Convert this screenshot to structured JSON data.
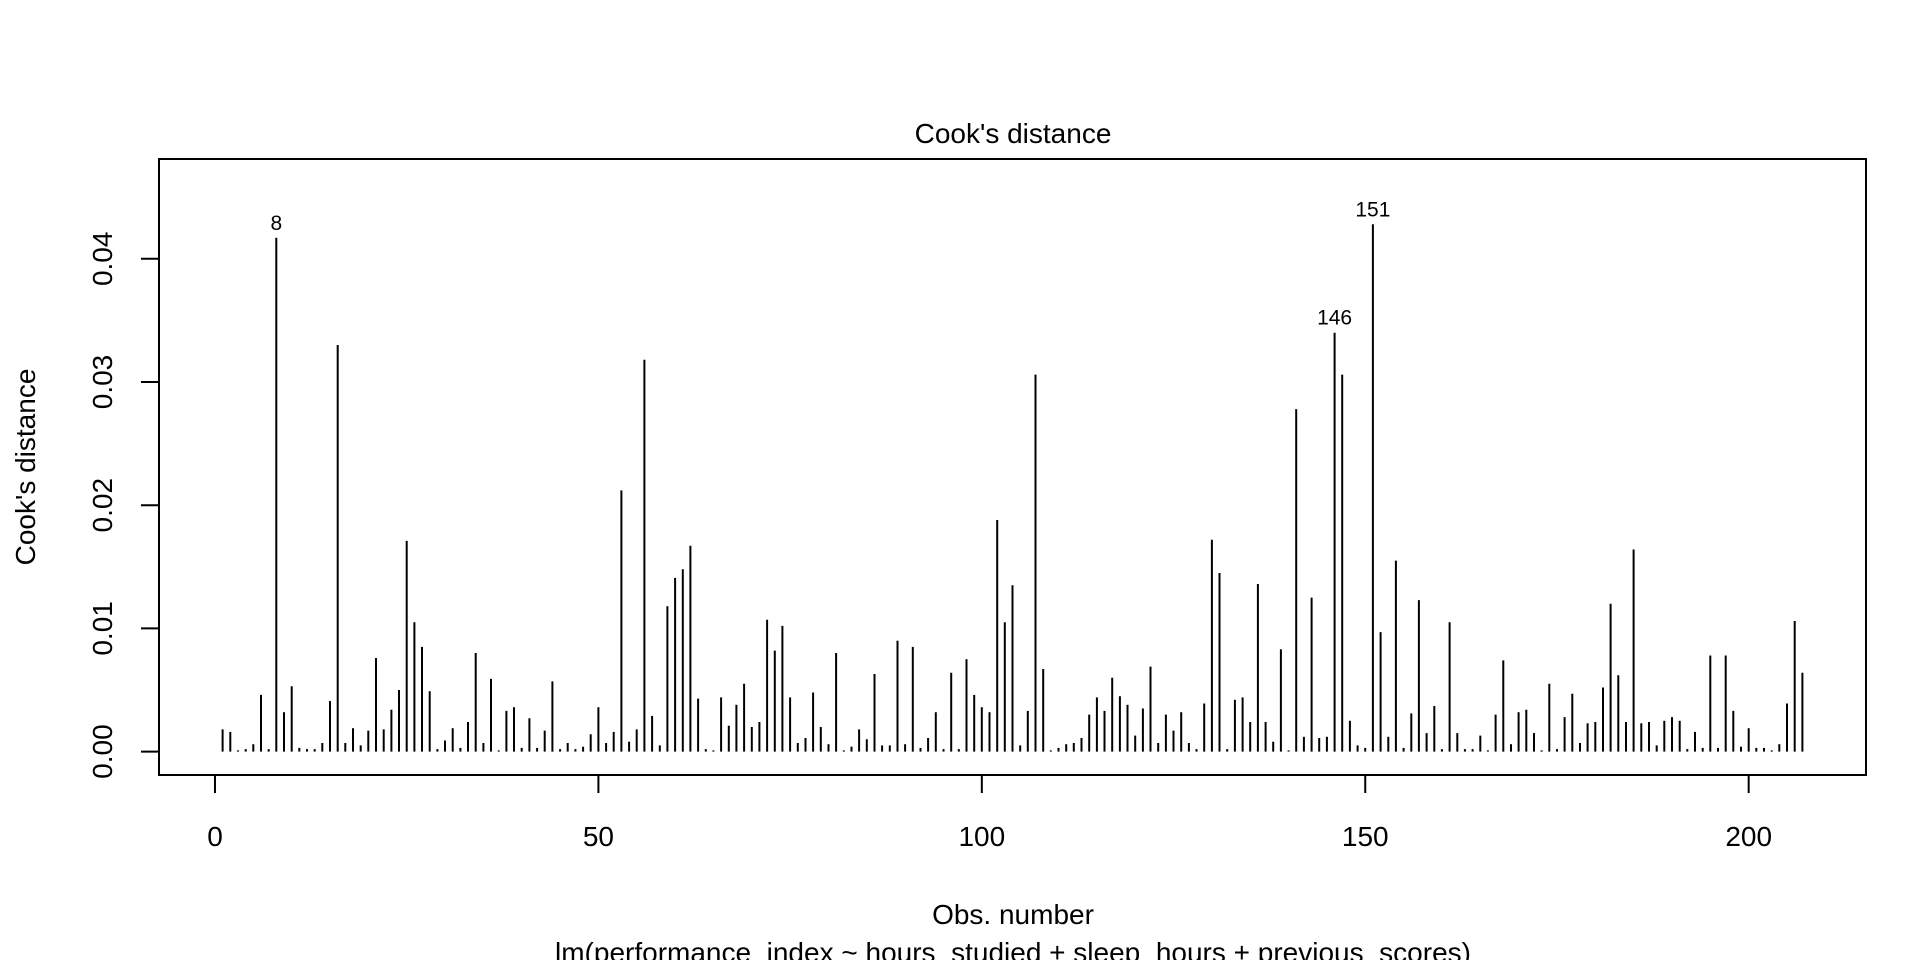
{
  "chart_data": {
    "type": "bar",
    "title": "Cook's distance",
    "xlabel": "Obs. number",
    "subtitle": "lm(performance_index ~ hours_studied + sleep_hours + previous_scores)",
    "ylabel": "Cook's distance",
    "xlim": [
      -7.3,
      215.3
    ],
    "ylim": [
      -0.0019,
      0.0481
    ],
    "x_ticks": [
      0,
      50,
      100,
      150,
      200
    ],
    "x_tick_labels": [
      "0",
      "50",
      "100",
      "150",
      "200"
    ],
    "y_ticks": [
      0,
      0.01,
      0.02,
      0.03,
      0.04
    ],
    "y_tick_labels": [
      "0.00",
      "0.01",
      "0.02",
      "0.03",
      "0.04"
    ],
    "grid": false,
    "legend": "none",
    "x": [
      1,
      2,
      3,
      4,
      5,
      6,
      7,
      8,
      9,
      10,
      11,
      12,
      13,
      14,
      15,
      16,
      17,
      18,
      19,
      20,
      21,
      22,
      23,
      24,
      25,
      26,
      27,
      28,
      29,
      30,
      31,
      32,
      33,
      34,
      35,
      36,
      37,
      38,
      39,
      40,
      41,
      42,
      43,
      44,
      45,
      46,
      47,
      48,
      49,
      50,
      51,
      52,
      53,
      54,
      55,
      56,
      57,
      58,
      59,
      60,
      61,
      62,
      63,
      64,
      65,
      66,
      67,
      68,
      69,
      70,
      71,
      72,
      73,
      74,
      75,
      76,
      77,
      78,
      79,
      80,
      81,
      82,
      83,
      84,
      85,
      86,
      87,
      88,
      89,
      90,
      91,
      92,
      93,
      94,
      95,
      96,
      97,
      98,
      99,
      100,
      101,
      102,
      103,
      104,
      105,
      106,
      107,
      108,
      109,
      110,
      111,
      112,
      113,
      114,
      115,
      116,
      117,
      118,
      119,
      120,
      121,
      122,
      123,
      124,
      125,
      126,
      127,
      128,
      129,
      130,
      131,
      132,
      133,
      134,
      135,
      136,
      137,
      138,
      139,
      140,
      141,
      142,
      143,
      144,
      145,
      146,
      147,
      148,
      149,
      150,
      151,
      152,
      153,
      154,
      155,
      156,
      157,
      158,
      159,
      160,
      161,
      162,
      163,
      164,
      165,
      166,
      167,
      168,
      169,
      170,
      171,
      172,
      173,
      174,
      175,
      176,
      177,
      178,
      179,
      180,
      181,
      182,
      183,
      184,
      185,
      186,
      187,
      188,
      189,
      190,
      191,
      192,
      193,
      194,
      195,
      196,
      197,
      198,
      199,
      200,
      201,
      202,
      203,
      204,
      205,
      206,
      207
    ],
    "values": [
      0.0018,
      0.0016,
      0.0001,
      0.0002,
      0.0006,
      0.0046,
      0.0002,
      0.0417,
      0.0032,
      0.0053,
      0.0003,
      0.0002,
      0.0002,
      0.0007,
      0.0041,
      0.033,
      0.0007,
      0.0019,
      0.0005,
      0.0017,
      0.0076,
      0.0018,
      0.0034,
      0.005,
      0.0171,
      0.0105,
      0.0085,
      0.0049,
      0.0002,
      0.0009,
      0.0019,
      0.0003,
      0.0024,
      0.008,
      0.0007,
      0.0059,
      0.0001,
      0.0033,
      0.0036,
      0.0003,
      0.0027,
      0.0003,
      0.0017,
      0.0057,
      0.0002,
      0.0007,
      0.0002,
      0.0004,
      0.0014,
      0.0036,
      0.0007,
      0.0016,
      0.0212,
      0.0008,
      0.0018,
      0.0318,
      0.0029,
      0.0005,
      0.0118,
      0.0141,
      0.0148,
      0.0167,
      0.0043,
      0.0002,
      0.0001,
      0.0044,
      0.0021,
      0.0038,
      0.0055,
      0.002,
      0.0024,
      0.0107,
      0.0082,
      0.0102,
      0.0044,
      0.0007,
      0.0011,
      0.0048,
      0.002,
      0.0006,
      0.008,
      0.0001,
      0.0004,
      0.0018,
      0.001,
      0.0063,
      0.0005,
      0.0005,
      0.009,
      0.0006,
      0.0085,
      0.0003,
      0.0011,
      0.0032,
      0.0002,
      0.0064,
      0.0002,
      0.0075,
      0.0046,
      0.0036,
      0.0032,
      0.0188,
      0.0105,
      0.0135,
      0.0005,
      0.0033,
      0.0306,
      0.0067,
      0.0001,
      0.0003,
      0.0006,
      0.0007,
      0.0011,
      0.003,
      0.0044,
      0.0033,
      0.006,
      0.0045,
      0.0038,
      0.0013,
      0.0035,
      0.0069,
      0.0007,
      0.003,
      0.0017,
      0.0032,
      0.0007,
      0.0002,
      0.0039,
      0.0172,
      0.0145,
      0.0002,
      0.0042,
      0.0044,
      0.0024,
      0.0136,
      0.0024,
      0.0008,
      0.0083,
      0.0001,
      0.0278,
      0.0012,
      0.0125,
      0.0011,
      0.0012,
      0.034,
      0.0306,
      0.0025,
      0.0005,
      0.0003,
      0.0428,
      0.0097,
      0.0012,
      0.0155,
      0.0003,
      0.0031,
      0.0123,
      0.0015,
      0.0037,
      0.0002,
      0.0105,
      0.0015,
      0.0002,
      0.0002,
      0.0013,
      0.0001,
      0.003,
      0.0074,
      0.0006,
      0.0032,
      0.0034,
      0.0015,
      0.0001,
      0.0055,
      0.0002,
      0.0028,
      0.0047,
      0.0007,
      0.0023,
      0.0024,
      0.0052,
      0.012,
      0.0062,
      0.0024,
      0.0164,
      0.0023,
      0.0024,
      0.0005,
      0.0025,
      0.0028,
      0.0025,
      0.0002,
      0.0016,
      0.0003,
      0.0078,
      0.0003,
      0.0078,
      0.0033,
      0.0004,
      0.0019,
      0.0003,
      0.0003,
      0.0001,
      0.0006,
      0.0039,
      0.0106,
      0.0064
    ],
    "annotations": [
      {
        "label": "8",
        "x": 8,
        "y": 0.0417
      },
      {
        "label": "146",
        "x": 146,
        "y": 0.034
      },
      {
        "label": "151",
        "x": 151,
        "y": 0.0428
      }
    ]
  }
}
